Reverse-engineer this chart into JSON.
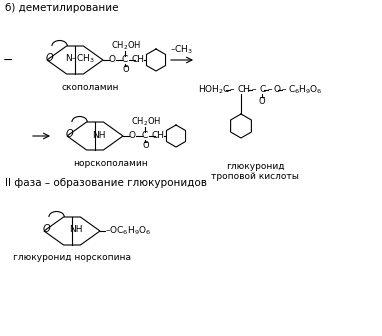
{
  "title_section1": "б) деметилирование",
  "title_section2": "II фаза – образование глюкуронидов",
  "label_scopolamine": "скополамин",
  "label_norscopolamine": "норскополамин",
  "label_glucuronide_nor": "глюкуронид норскопина",
  "label_glucuronide_tropic": "глюкуронид\nтроповой кислоты",
  "bg_color": "#ffffff",
  "text_color": "#000000",
  "line_color": "#000000",
  "font_size_title": 7.5,
  "font_size_label": 6.5,
  "font_size_chem": 6.5
}
